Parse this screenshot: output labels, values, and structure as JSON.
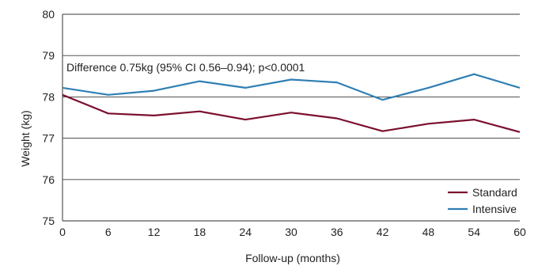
{
  "chart_data": {
    "type": "line",
    "title": "",
    "xlabel": "Follow-up (months)",
    "ylabel": "Weight (kg)",
    "x": [
      0,
      6,
      12,
      18,
      24,
      30,
      36,
      42,
      48,
      54,
      60
    ],
    "xlim": [
      0,
      60
    ],
    "ylim": [
      75,
      80
    ],
    "xticks": [
      "0",
      "6",
      "12",
      "18",
      "24",
      "30",
      "36",
      "42",
      "48",
      "54",
      "60"
    ],
    "yticks": [
      "75",
      "76",
      "77",
      "78",
      "79",
      "80"
    ],
    "grid": "horizontal",
    "legend_position": "bottom-right",
    "annotation": "Difference 0.75kg (95% CI 0.56–0.94); p<0.0001",
    "series": [
      {
        "name": "Standard",
        "color": "#7b0f2e",
        "values": [
          78.05,
          77.6,
          77.55,
          77.65,
          77.45,
          77.62,
          77.48,
          77.17,
          77.35,
          77.45,
          77.15
        ]
      },
      {
        "name": "Intensive",
        "color": "#2f7fb4",
        "values": [
          78.22,
          78.05,
          78.15,
          78.38,
          78.22,
          78.42,
          78.35,
          77.93,
          78.22,
          78.55,
          78.22
        ]
      }
    ]
  }
}
